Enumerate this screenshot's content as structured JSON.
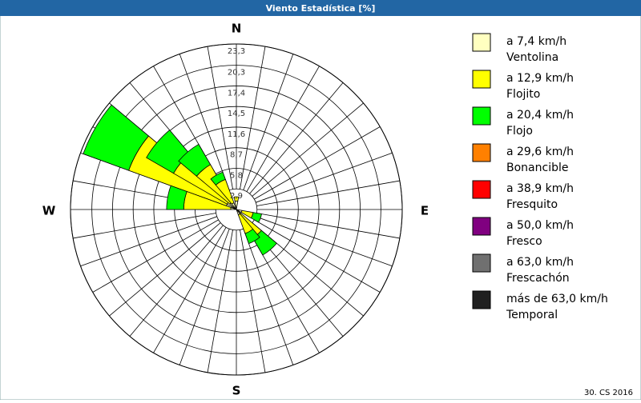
{
  "chart_data": {
    "type": "windrose",
    "title": "Viento Estadística [%]",
    "footer": "30. CS 2016",
    "compass": {
      "north": "N",
      "east": "E",
      "south": "S",
      "west": "W"
    },
    "directions": [
      0,
      110,
      140,
      150,
      280,
      300,
      310,
      320,
      330
    ],
    "rlim": [
      0,
      23.3
    ],
    "rticks": [
      {
        "value": 2.9,
        "label": "2,9"
      },
      {
        "value": 5.8,
        "label": "5,8"
      },
      {
        "value": 8.7,
        "label": "8,7"
      },
      {
        "value": 11.6,
        "label": "11,6"
      },
      {
        "value": 14.5,
        "label": "14,5"
      },
      {
        "value": 17.4,
        "label": "17,4"
      },
      {
        "value": 20.3,
        "label": "20,3"
      },
      {
        "value": 23.3,
        "label": "23,3"
      }
    ],
    "series": [
      {
        "name": "a 7,4 km/h",
        "description": "Ventolina",
        "color": "#ffffc0",
        "values": [
          1.2,
          0.8,
          0.8,
          0.8,
          0.8,
          1.5,
          1.5,
          1.2,
          1.0
        ]
      },
      {
        "name": "a 12,9 km/h",
        "description": "Flojito",
        "color": "#ffff00",
        "values": [
          0.6,
          1.6,
          3.8,
          2.8,
          6.6,
          14.6,
          8.7,
          6.1,
          3.5
        ]
      },
      {
        "name": "a 20,4 km/h",
        "description": "Flojo",
        "color": "#00ff00",
        "values": [
          0,
          1.2,
          2.8,
          1.5,
          2.4,
          6.8,
          4.4,
          3.3,
          1.1
        ]
      },
      {
        "name": "a 29,6 km/h",
        "description": "Bonancible",
        "color": "#ff8000",
        "values": [
          0,
          0,
          0,
          0,
          0,
          0,
          0,
          0,
          0
        ]
      },
      {
        "name": "a 38,9 km/h",
        "description": "Fresquito",
        "color": "#ff0000",
        "values": [
          0,
          0,
          0,
          0,
          0,
          0,
          0,
          0,
          0
        ]
      },
      {
        "name": "a 50,0 km/h",
        "description": "Fresco",
        "color": "#800080",
        "values": [
          0,
          0,
          0,
          0,
          0,
          0,
          0,
          0,
          0
        ]
      },
      {
        "name": "a 63,0 km/h",
        "description": "Frescachón",
        "color": "#707070",
        "values": [
          0,
          0,
          0,
          0,
          0,
          0,
          0,
          0,
          0
        ]
      },
      {
        "name": "más de 63,0 km/h",
        "description": "Temporal",
        "color": "#202020",
        "values": [
          0,
          0,
          0,
          0,
          0,
          0,
          0,
          0,
          0
        ]
      }
    ]
  }
}
